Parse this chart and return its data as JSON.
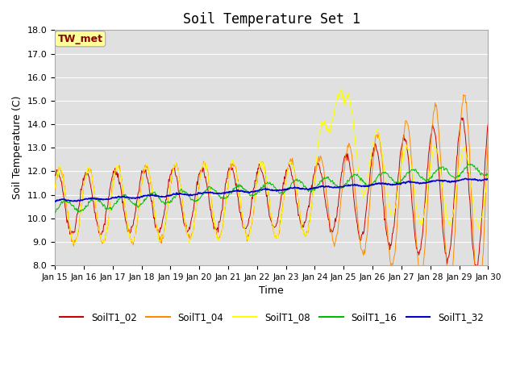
{
  "title": "Soil Temperature Set 1",
  "xlabel": "Time",
  "ylabel": "Soil Temperature (C)",
  "ylim": [
    8.0,
    18.0
  ],
  "yticks": [
    8.0,
    9.0,
    10.0,
    11.0,
    12.0,
    13.0,
    14.0,
    15.0,
    16.0,
    17.0,
    18.0
  ],
  "annotation_text": "TW_met",
  "annotation_color": "#8B0000",
  "annotation_bg": "#FFFF99",
  "annotation_edge": "#AAAAAA",
  "bg_color": "#E0E0E0",
  "grid_color": "#FFFFFF",
  "colors": {
    "SoilT1_02": "#CC0000",
    "SoilT1_04": "#FF8C00",
    "SoilT1_08": "#FFFF00",
    "SoilT1_16": "#00BB00",
    "SoilT1_32": "#0000CC"
  },
  "legend_labels": [
    "SoilT1_02",
    "SoilT1_04",
    "SoilT1_08",
    "SoilT1_16",
    "SoilT1_32"
  ]
}
